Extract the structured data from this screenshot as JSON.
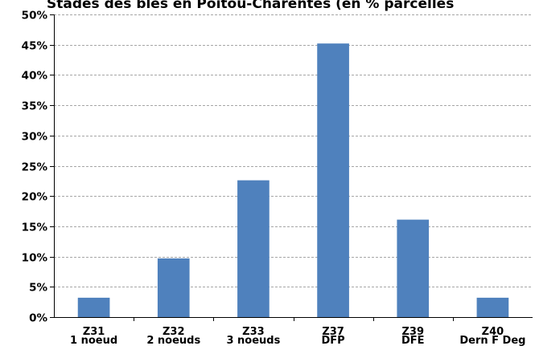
{
  "chart_data": {
    "type": "bar",
    "title": "Stades des blés en Poitou-Charentes (en % parcelles",
    "xlabel": "",
    "ylabel": "",
    "categories": [
      [
        "Z31",
        "1 noeud"
      ],
      [
        "Z32",
        "2 noeuds"
      ],
      [
        "Z33",
        "3 noeuds"
      ],
      [
        "Z37",
        "DFP"
      ],
      [
        "Z39",
        "DFE"
      ],
      [
        "Z40",
        "Dern F Deg"
      ]
    ],
    "values": [
      3.2,
      9.7,
      22.6,
      45.2,
      16.1,
      3.2
    ],
    "ylim": [
      0,
      50
    ],
    "yticks": [
      "0%",
      "5%",
      "10%",
      "15%",
      "20%",
      "25%",
      "30%",
      "35%",
      "40%",
      "45%",
      "50%"
    ],
    "grid": true,
    "legend": "none",
    "colors": {
      "bar": "#4f81bd",
      "grid": "#a6a6a6",
      "axis": "#000000"
    }
  }
}
